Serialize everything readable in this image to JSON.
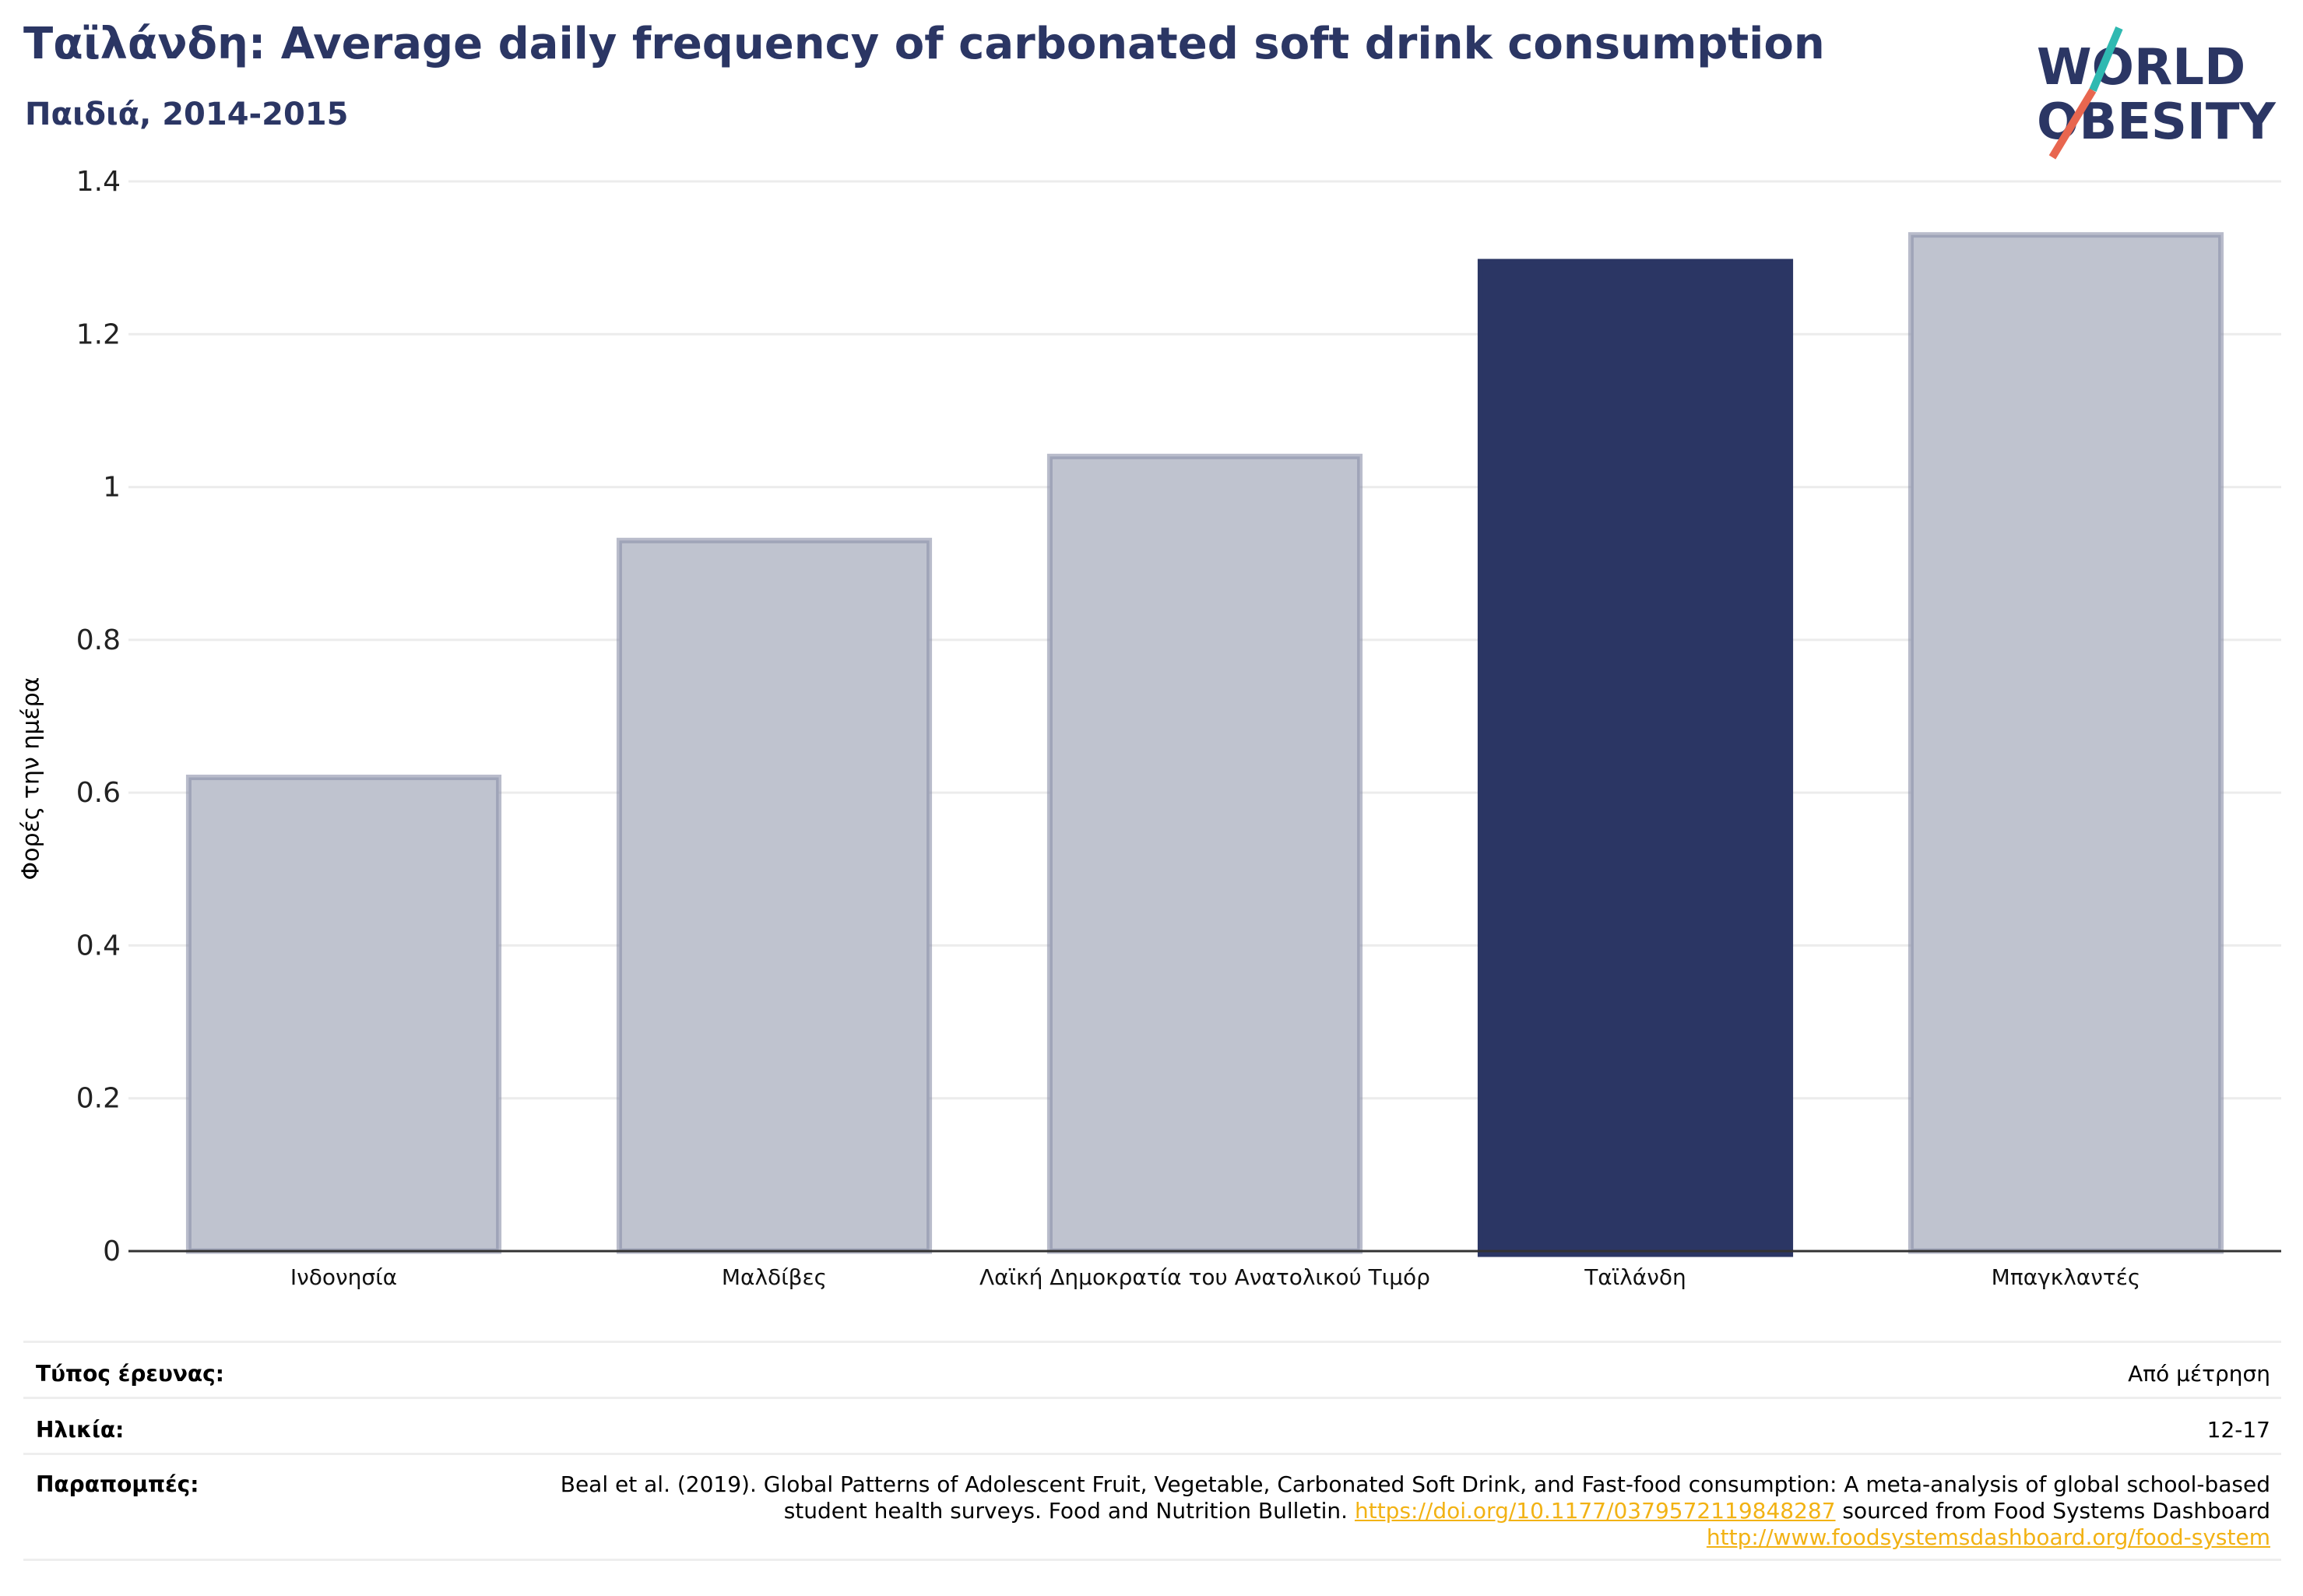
{
  "header": {
    "title": "Ταϊλάνδη: Average daily frequency of carbonated soft drink consumption",
    "subtitle": "Παιδιά, 2014-2015"
  },
  "logo": {
    "line1": "WORLD",
    "line2": "OBESITY"
  },
  "colors": {
    "highlight": "#2b3664",
    "other": "#bfc3cf",
    "other_border": "#8a90a8",
    "accent_teal": "#2fb9b1",
    "accent_coral": "#e8664f",
    "link": "#f2b214"
  },
  "chart_data": {
    "type": "bar",
    "categories": [
      "Ινδονησία",
      "Μαλδίβες",
      "Λαϊκή Δημοκρατία του Ανατολικού Τιμόρ",
      "Ταϊλάνδη",
      "Μπαγκλαντές"
    ],
    "values": [
      0.62,
      0.93,
      1.04,
      1.295,
      1.33
    ],
    "highlight": "Ταϊλάνδη",
    "ylabel": "Φορές την ημέρα",
    "xlabel": "",
    "ylim": [
      0,
      1.4
    ],
    "yticks": [
      "0",
      "0.2",
      "0.4",
      "0.6",
      "0.8",
      "1",
      "1.2",
      "1.4"
    ],
    "grid": true
  },
  "info": {
    "survey_type_label": "Τύπος έρευνας:",
    "survey_type_value": "Από μέτρηση",
    "age_label": "Ηλικία:",
    "age_value": "12-17",
    "refs_label": "Παραπομπές:",
    "refs_text1": "Beal et al. (2019). Global Patterns of Adolescent Fruit, Vegetable, Carbonated Soft Drink, and Fast-food consumption: A meta-analysis of global school-based student health surveys. Food and Nutrition Bulletin. ",
    "refs_link1": "https://doi.org/10.1177/0379572119848287",
    "refs_text2": " sourced from Food Systems Dashboard ",
    "refs_link2": "http://www.foodsystemsdashboard.org/food-system"
  }
}
